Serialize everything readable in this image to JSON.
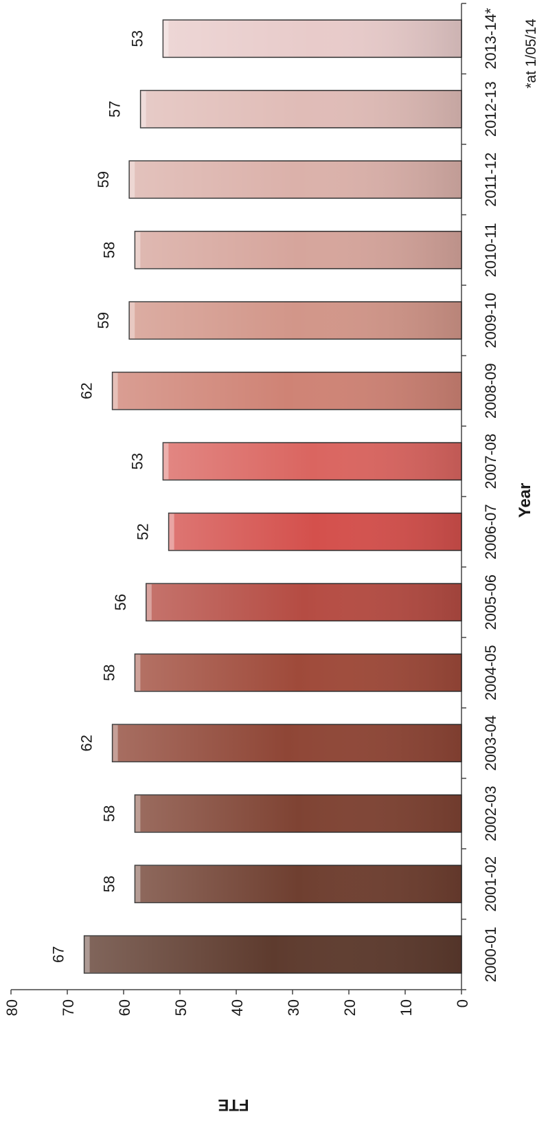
{
  "chart_data": {
    "type": "bar",
    "orientation": "horizontal",
    "title": "",
    "xlabel": "FTE",
    "ylabel": "Year",
    "xlim": [
      0,
      80
    ],
    "x_ticks": [
      0,
      10,
      20,
      30,
      40,
      50,
      60,
      70,
      80
    ],
    "grid": false,
    "legend": "none",
    "categories": [
      "2000-01",
      "2001-02",
      "2002-03",
      "2003-04",
      "2004-05",
      "2005-06",
      "2006-07",
      "2007-08",
      "2008-09",
      "2009-10",
      "2010-11",
      "2011-12",
      "2012-13",
      "2013-14*"
    ],
    "values": [
      67,
      58,
      58,
      62,
      58,
      56,
      52,
      53,
      62,
      59,
      58,
      59,
      57,
      53
    ],
    "bar_colors": [
      "#5e3b2e",
      "#6f3f30",
      "#7f4333",
      "#8f4636",
      "#9f4a3a",
      "#b54c43",
      "#d4504c",
      "#da6560",
      "#cf8375",
      "#d29689",
      "#d6a59c",
      "#dbb1aa",
      "#e0bcb7",
      "#e8cbca"
    ],
    "footnote": "*at 1/05/14"
  }
}
